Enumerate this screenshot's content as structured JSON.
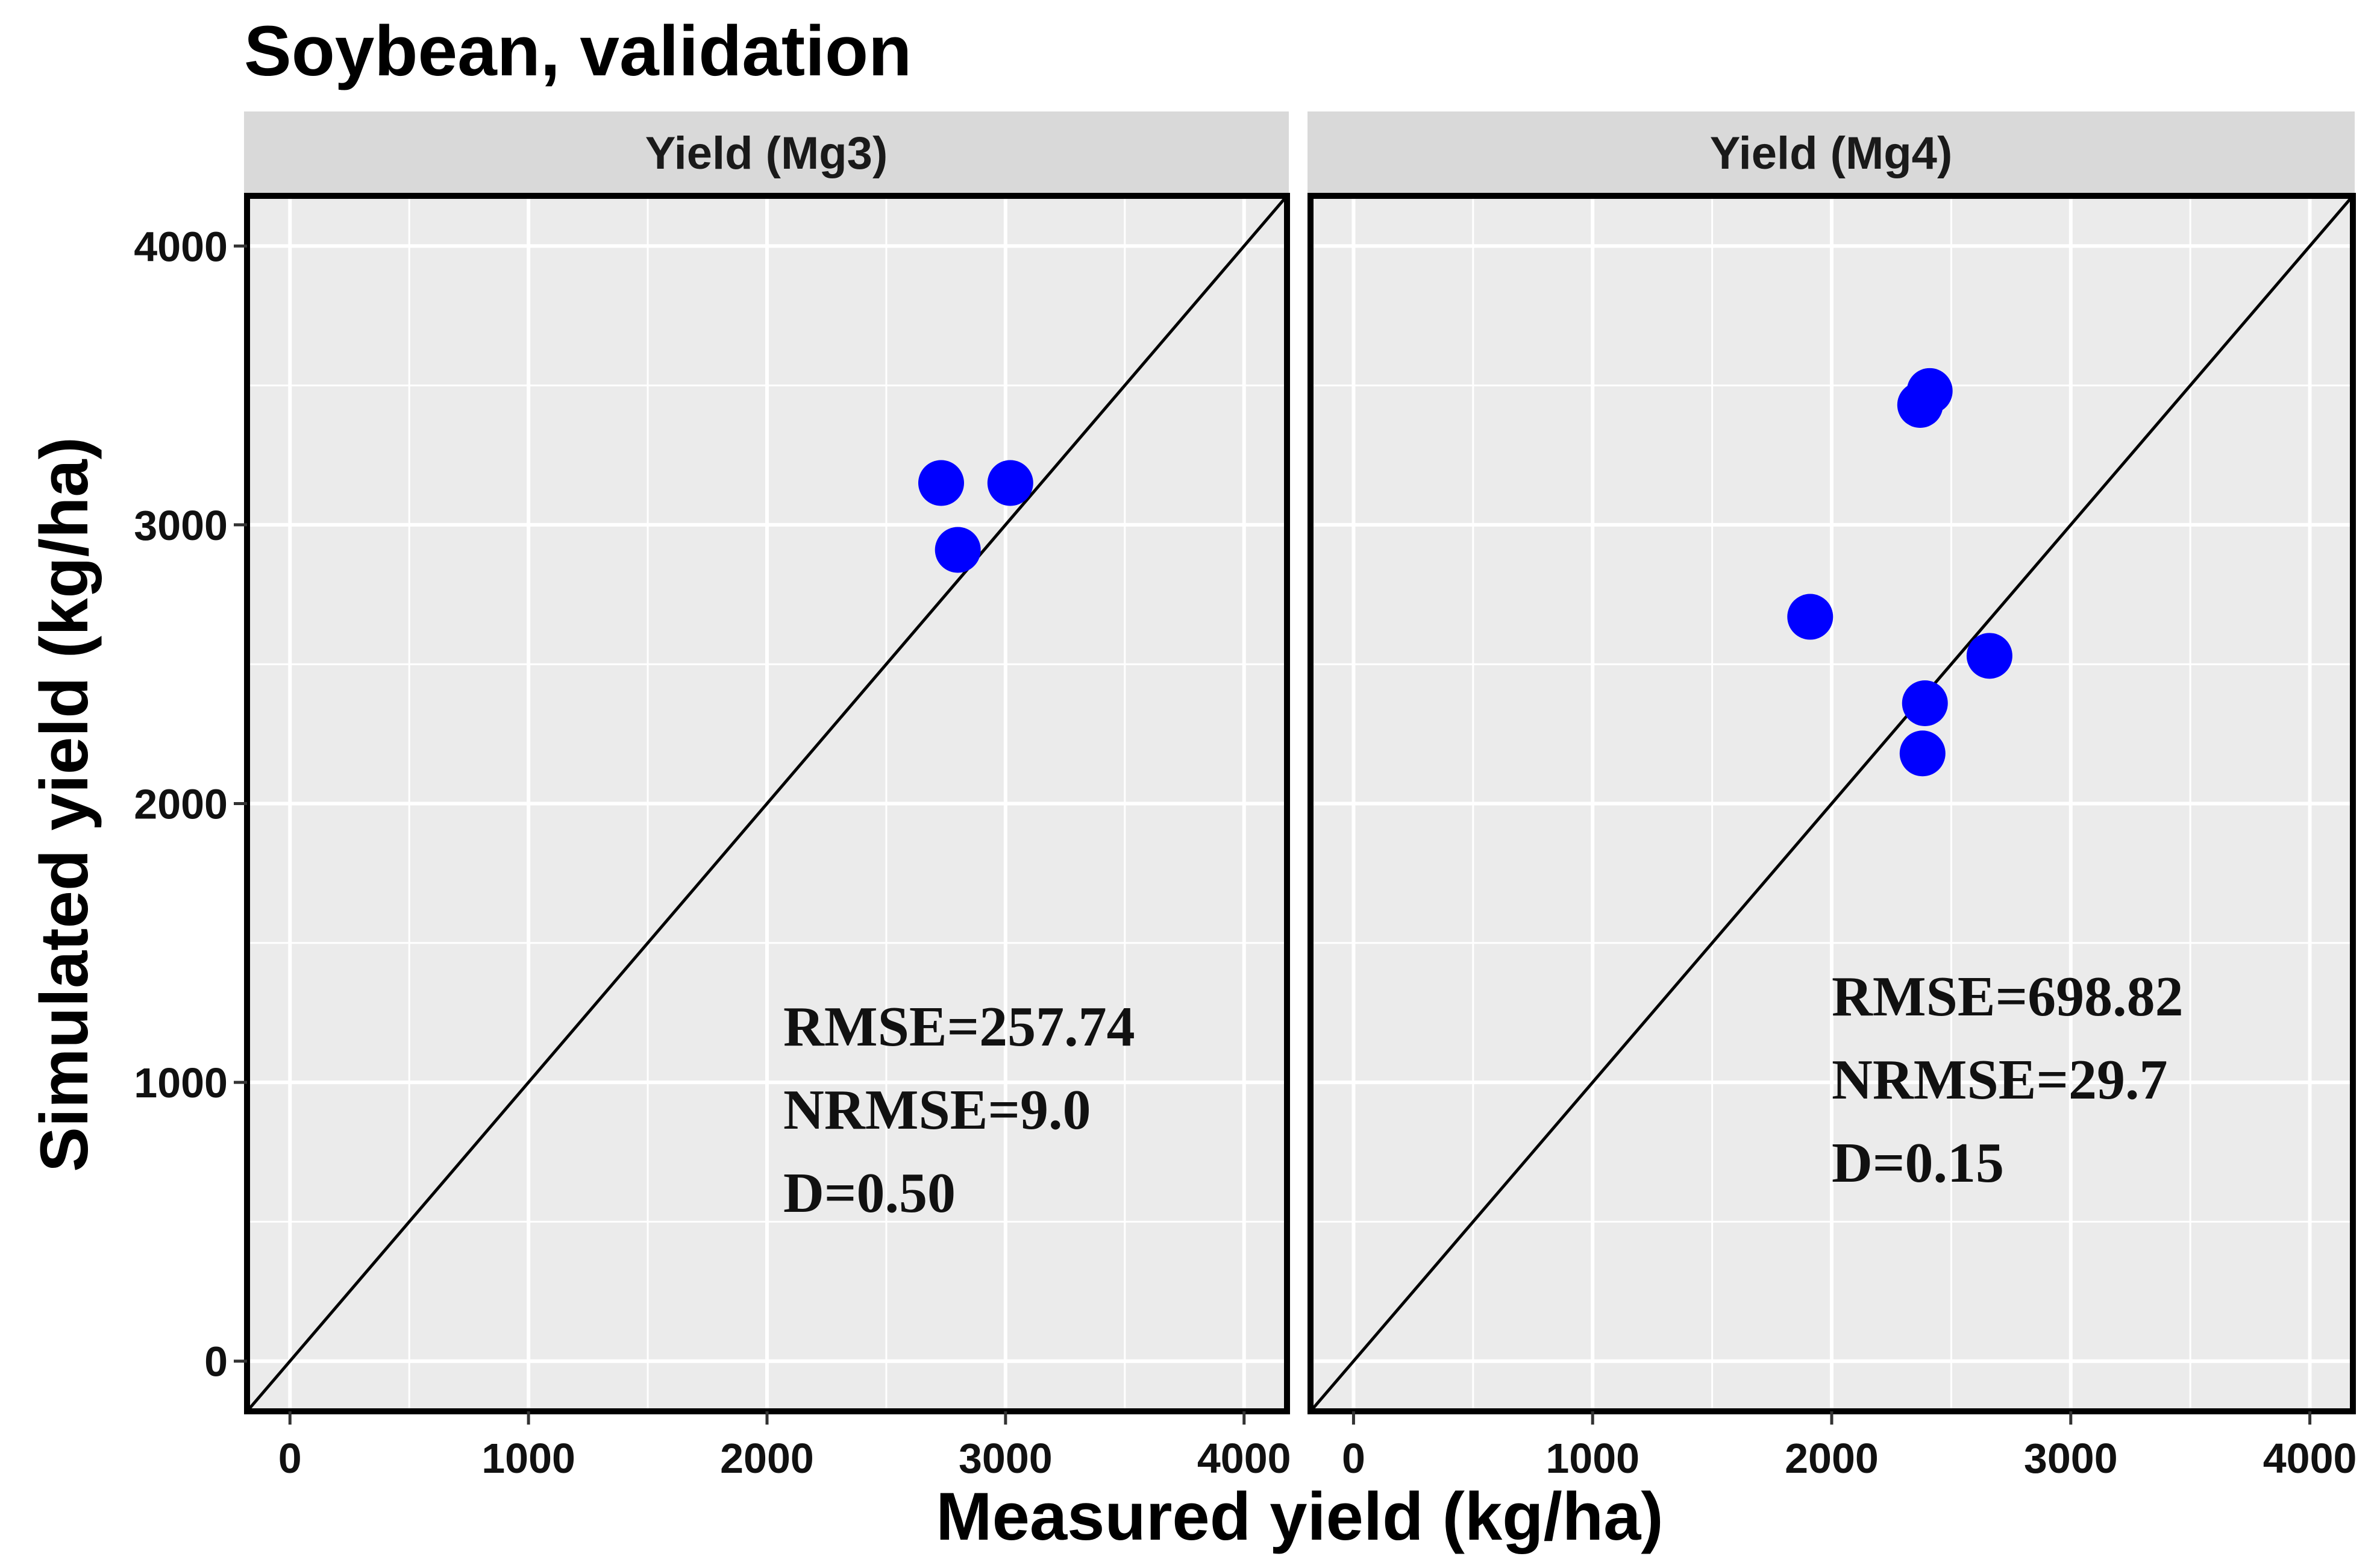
{
  "chart_data": {
    "type": "scatter",
    "title": "Soybean, validation",
    "xlabel": "Measured yield (kg/ha)",
    "ylabel": "Simulated yield (kg/ha)",
    "xlim": [
      -180,
      4180
    ],
    "ylim": [
      -180,
      4180
    ],
    "xticks": [
      0,
      1000,
      2000,
      3000,
      4000
    ],
    "yticks": [
      0,
      1000,
      2000,
      3000,
      4000
    ],
    "xtick_labels": [
      "0",
      "1000",
      "2000",
      "3000",
      "4000"
    ],
    "ytick_labels": [
      "0",
      "1000",
      "2000",
      "3000",
      "4000"
    ],
    "grid": true,
    "reference_line": "1:1",
    "point_color": "#0000ff",
    "panels": [
      {
        "strip": "Yield (Mg3)",
        "points": [
          {
            "x": 2730,
            "y": 3150
          },
          {
            "x": 3020,
            "y": 3150
          },
          {
            "x": 2800,
            "y": 2910
          }
        ],
        "stats": [
          "RMSE=257.74",
          "NRMSE=9.0",
          "D=0.50"
        ]
      },
      {
        "strip": "Yield (Mg4)",
        "points": [
          {
            "x": 2410,
            "y": 3480
          },
          {
            "x": 2370,
            "y": 3430
          },
          {
            "x": 1910,
            "y": 2670
          },
          {
            "x": 2660,
            "y": 2530
          },
          {
            "x": 2390,
            "y": 2360
          },
          {
            "x": 2380,
            "y": 2180
          }
        ],
        "stats": [
          "RMSE=698.82",
          "NRMSE=29.7",
          "D=0.15"
        ]
      }
    ]
  }
}
